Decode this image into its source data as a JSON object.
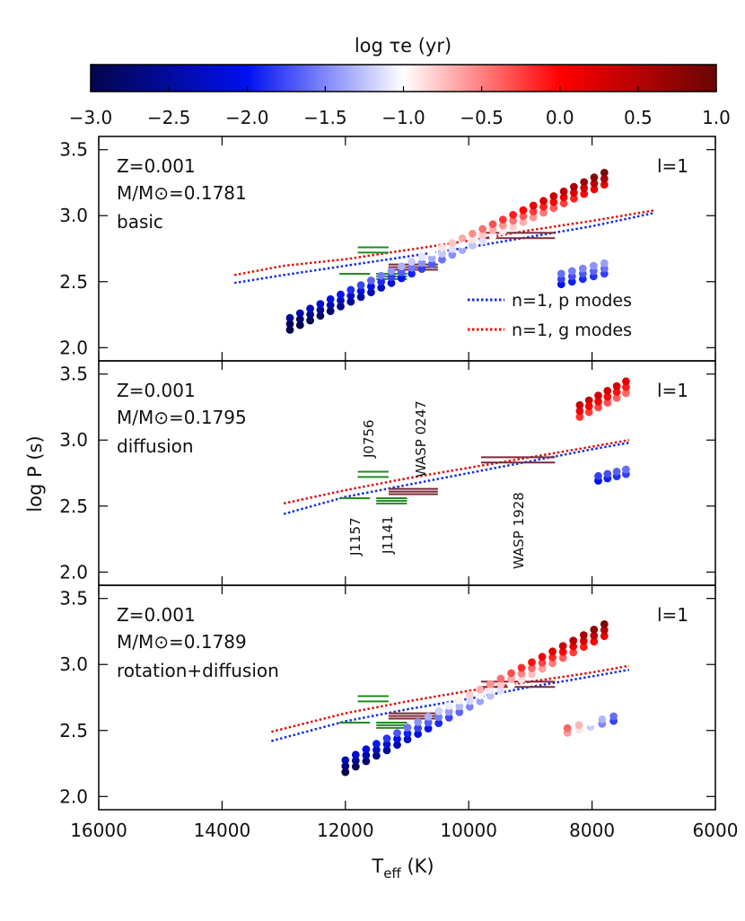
{
  "chart_data": {
    "type": "scatter",
    "colorbar": {
      "title": "log τe (yr)",
      "min": -3.0,
      "max": 1.0,
      "ticks": [
        "−3.0",
        "−2.5",
        "−2.0",
        "−1.5",
        "−1.0",
        "−0.5",
        "0.0",
        "0.5",
        "1.0"
      ],
      "stops": [
        {
          "v": -3.0,
          "color": "#05054a"
        },
        {
          "v": -2.0,
          "color": "#0010f0"
        },
        {
          "v": -1.0,
          "color": "#ffffff"
        },
        {
          "v": 0.0,
          "color": "#ff0000"
        },
        {
          "v": 1.0,
          "color": "#6a0505"
        }
      ]
    },
    "xlabel": "T",
    "xlabel_sub": "eff",
    "xlabel_unit": " (K)",
    "ylabel": "log P (s)",
    "xlim": [
      16000,
      6000
    ],
    "ylim": [
      1.9,
      3.6
    ],
    "xticks": [
      16000,
      14000,
      12000,
      10000,
      8000,
      6000
    ],
    "yticks": [
      "2.0",
      "2.5",
      "3.0",
      "3.5"
    ],
    "legend": {
      "p_label": "n=1, p modes",
      "g_label": "n=1, g modes",
      "p_color": "#1030e0",
      "g_color": "#e01010"
    },
    "observed_color_green": "#228b22",
    "observed_color_brown": "#7a2a3a",
    "panels": [
      {
        "z_label": "Z=0.001",
        "mass_label": "M/M⊙=0.1781",
        "model_label": "basic",
        "model_color": "#8b1a8b",
        "l_label": "l=1",
        "p_line": {
          "x": [
            13800,
            13000,
            12000,
            11000,
            10000,
            9000,
            8000,
            7000
          ],
          "y": [
            2.49,
            2.55,
            2.62,
            2.69,
            2.76,
            2.84,
            2.92,
            3.02
          ]
        },
        "g_line": {
          "x": [
            13800,
            13000,
            12000,
            11000,
            10000,
            9000,
            8000,
            7000
          ],
          "y": [
            2.55,
            2.62,
            2.67,
            2.74,
            2.81,
            2.89,
            2.96,
            3.04
          ]
        },
        "branches": [
          {
            "t0": 12900,
            "t1": 7800,
            "y0": 2.18,
            "y1": 3.28,
            "n": 32,
            "c0": -2.9,
            "c1": 0.55,
            "s": 0.35,
            "k": 3,
            "ks": 0.045
          },
          {
            "t0": 8500,
            "t1": 7800,
            "y0": 2.52,
            "y1": 2.6,
            "n": 5,
            "c0": -1.8,
            "c1": -1.6,
            "s": 0.2,
            "k": 3,
            "ks": 0.04
          }
        ],
        "show_legend": true,
        "show_annotations": false
      },
      {
        "z_label": "Z=0.001",
        "mass_label": "M/M⊙=0.1795",
        "model_label": "diffusion",
        "model_color": "#f0a020",
        "l_label": "l=1",
        "p_line": {
          "x": [
            13000,
            12000,
            11000,
            10000,
            9000,
            8000,
            7400
          ],
          "y": [
            2.44,
            2.57,
            2.66,
            2.75,
            2.84,
            2.93,
            2.98
          ]
        },
        "g_line": {
          "x": [
            13000,
            12000,
            11000,
            10000,
            9000,
            8000,
            7400
          ],
          "y": [
            2.52,
            2.62,
            2.71,
            2.79,
            2.87,
            2.95,
            3.0
          ]
        },
        "branches": [
          {
            "t0": 8200,
            "t1": 7450,
            "y0": 3.22,
            "y1": 3.4,
            "n": 6,
            "c0": 0.1,
            "c1": -0.1,
            "s": 0.3,
            "k": 3,
            "ks": 0.045
          },
          {
            "t0": 7900,
            "t1": 7450,
            "y0": 2.71,
            "y1": 2.76,
            "n": 4,
            "c0": -1.9,
            "c1": -1.7,
            "s": 0.2,
            "k": 2,
            "ks": 0.035
          }
        ],
        "show_legend": false,
        "show_annotations": true,
        "annotations": [
          "J0756",
          "WASP 0247",
          "J1157",
          "J1141",
          "WASP 1928"
        ]
      },
      {
        "z_label": "Z=0.001",
        "mass_label": "M/M⊙=0.1789",
        "model_label": "rotation+diffusion",
        "model_color": "#6060f0",
        "l_label": "l=1",
        "p_line": {
          "x": [
            13200,
            12000,
            11000,
            10000,
            9000,
            8000,
            7400
          ],
          "y": [
            2.42,
            2.57,
            2.66,
            2.74,
            2.83,
            2.91,
            2.96
          ]
        },
        "g_line": {
          "x": [
            13200,
            12000,
            11000,
            10000,
            9000,
            8000,
            7400
          ],
          "y": [
            2.49,
            2.63,
            2.72,
            2.8,
            2.87,
            2.94,
            2.99
          ]
        },
        "branches": [
          {
            "t0": 12000,
            "t1": 7800,
            "y0": 2.23,
            "y1": 3.26,
            "n": 26,
            "c0": -2.7,
            "c1": 0.5,
            "s": 0.35,
            "k": 3,
            "ks": 0.045
          },
          {
            "t0": 8400,
            "t1": 7650,
            "y0": 2.5,
            "y1": 2.59,
            "n": 5,
            "c0": -0.5,
            "c1": -1.7,
            "s": 0.2,
            "k": 2,
            "ks": 0.035
          }
        ],
        "show_legend": false,
        "show_annotations": false
      }
    ],
    "observations": [
      {
        "name": "J0756",
        "t_lo": 11800,
        "t_hi": 11300,
        "y": [
          2.72,
          2.76
        ],
        "color": "green"
      },
      {
        "name": "J1157",
        "t_lo": 12100,
        "t_hi": 11600,
        "y": [
          2.56
        ],
        "color": "green"
      },
      {
        "name": "J1141",
        "t_lo": 11500,
        "t_hi": 11000,
        "y": [
          2.52,
          2.54,
          2.56
        ],
        "color": "green"
      },
      {
        "name": "WASP 0247",
        "t_lo": 11300,
        "t_hi": 10500,
        "y": [
          2.59,
          2.61,
          2.63
        ],
        "color": "brown"
      },
      {
        "name": "WASP 1928",
        "t_lo": 9800,
        "t_hi": 8600,
        "y": [
          2.83,
          2.87
        ],
        "color": "brown"
      }
    ]
  }
}
